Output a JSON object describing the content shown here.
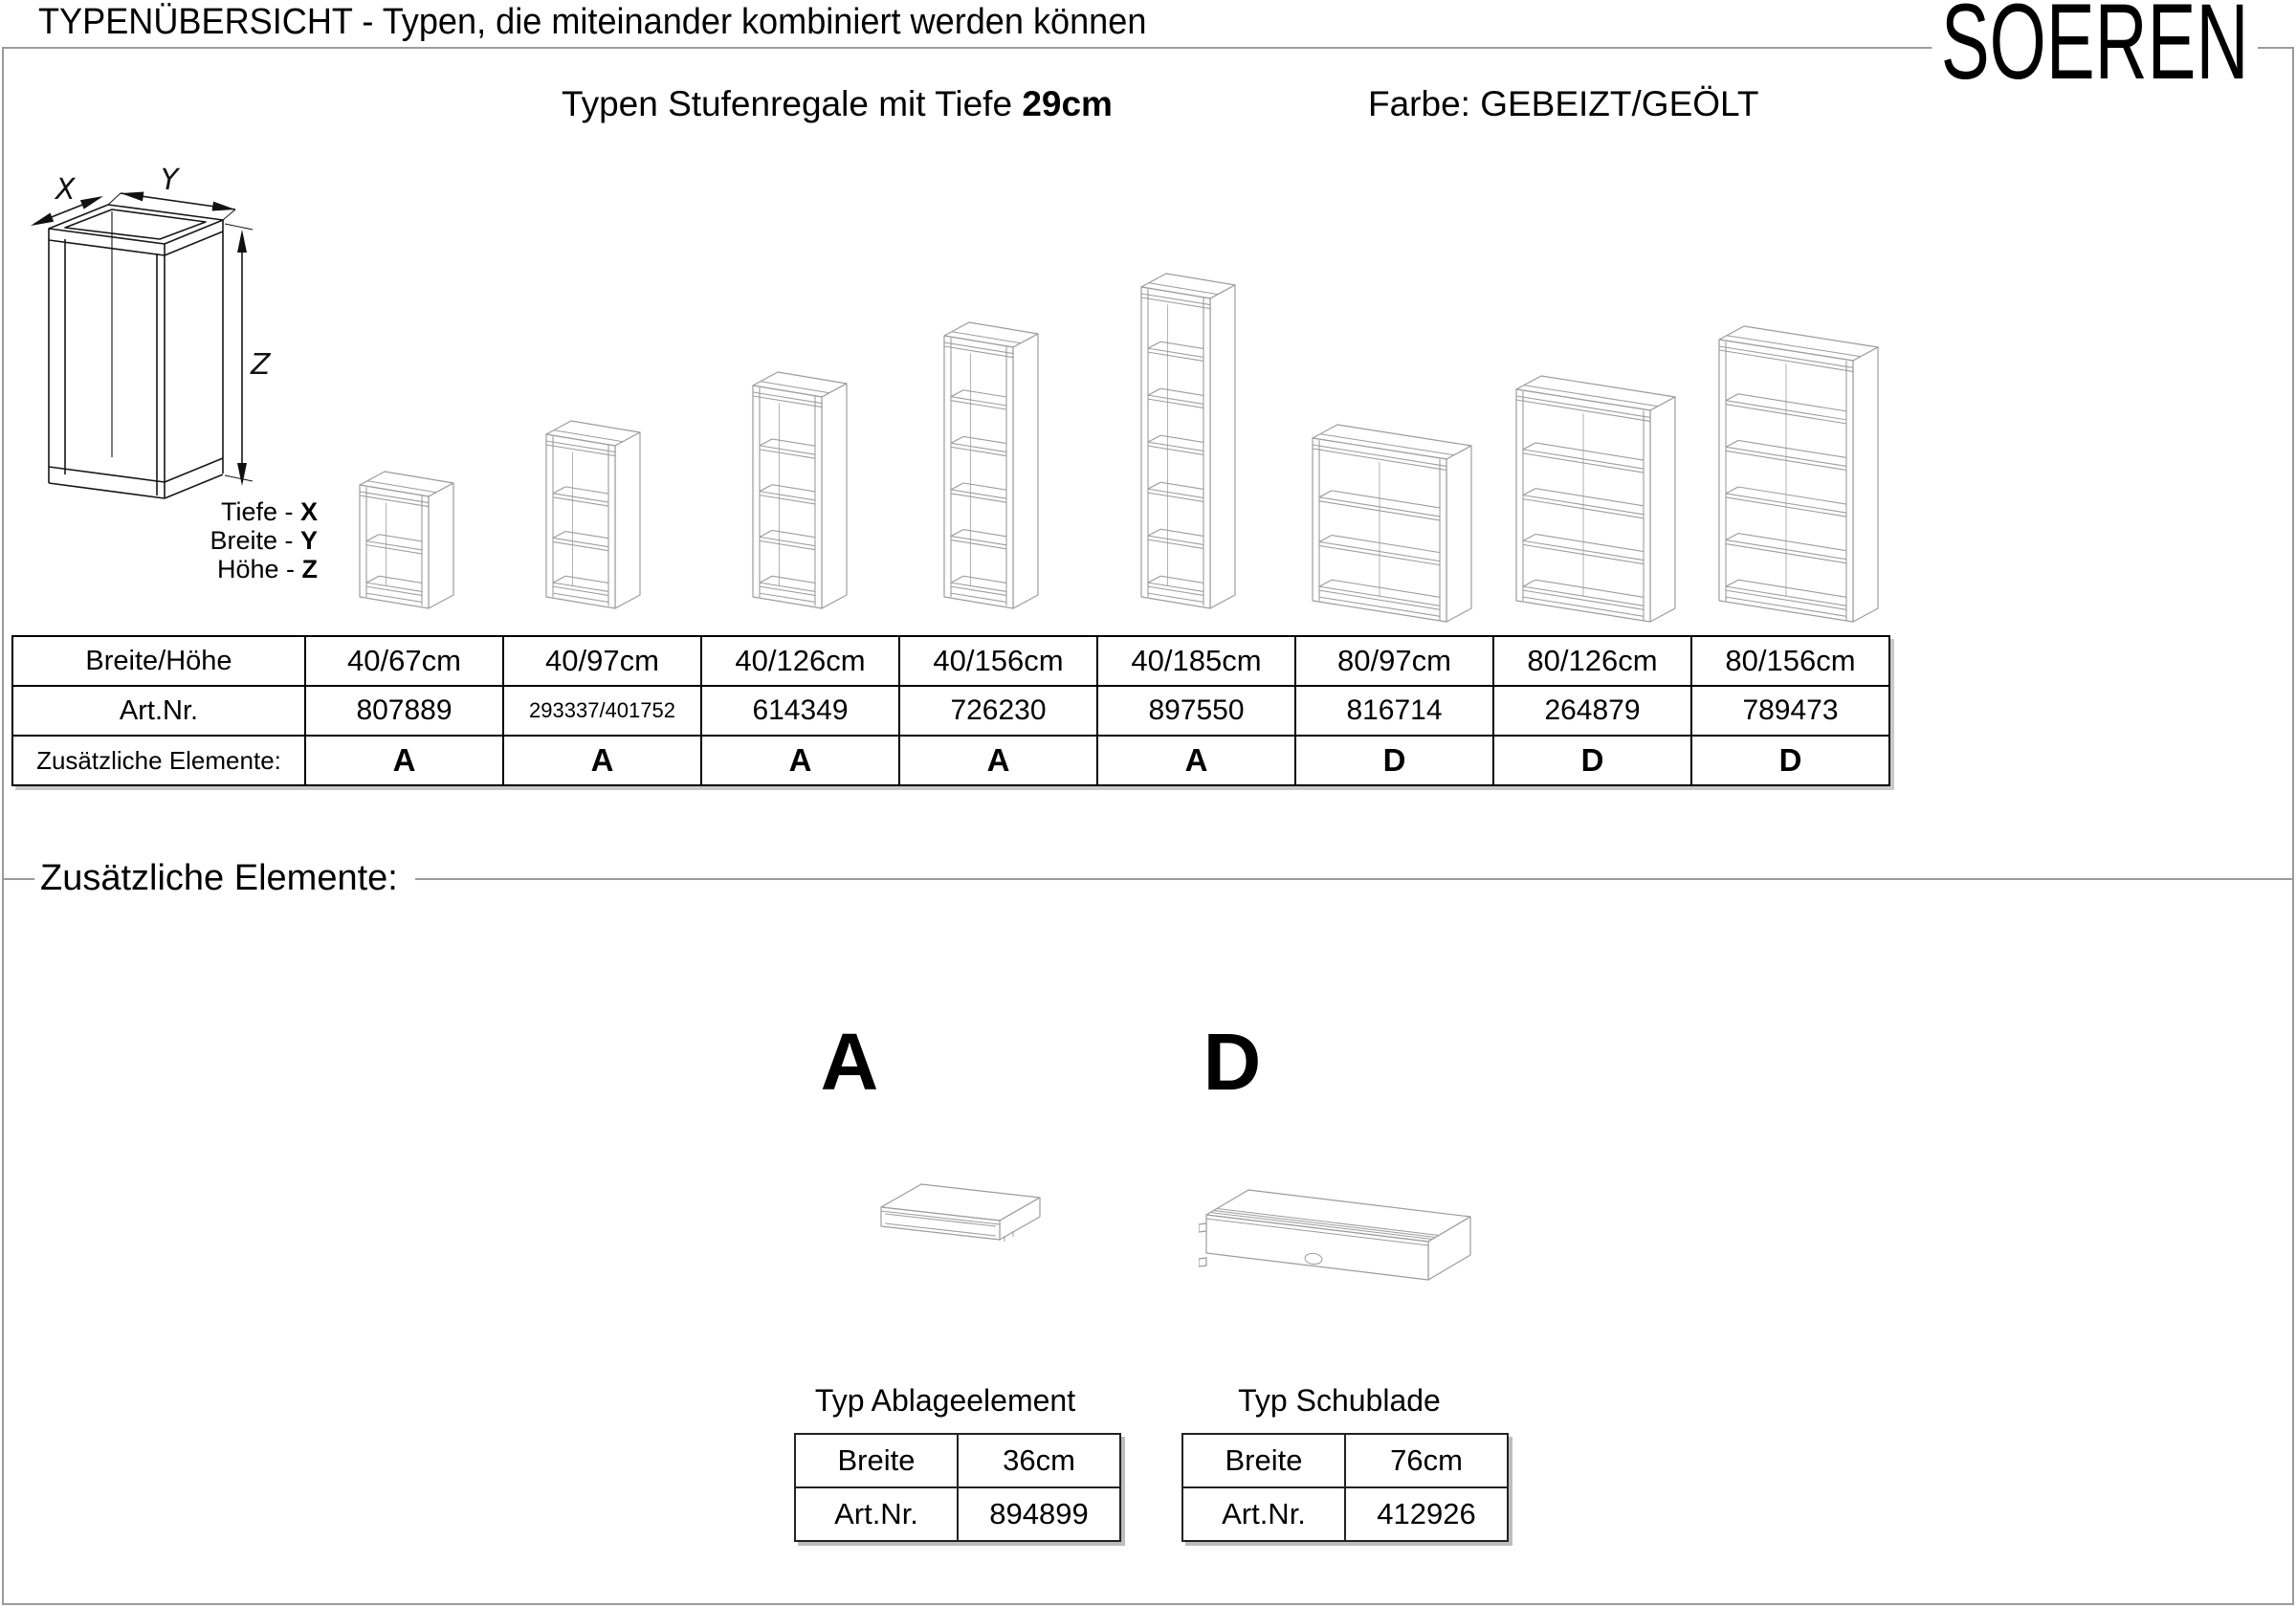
{
  "page": {
    "title": "TYPENÜBERSICHT - Typen, die miteinander kombiniert werden können",
    "brand": "SOEREN",
    "subtitle_prefix": "Typen Stufenregale mit Tiefe ",
    "subtitle_bold": "29cm",
    "color_label": "Farbe: GEBEIZT/GEÖLT"
  },
  "colors": {
    "drawing_line_gray": "#9c9c9c",
    "border_gray": "#9b9b9b",
    "text": "#000000"
  },
  "dimension_legend": {
    "x_label": "X",
    "y_label": "Y",
    "z_label": "Z",
    "lines": [
      {
        "prefix": "Tiefe - ",
        "axis": "X"
      },
      {
        "prefix": "Breite - ",
        "axis": "Y"
      },
      {
        "prefix": "Höhe - ",
        "axis": "Z"
      }
    ]
  },
  "shelves": [
    {
      "width_cm": 40,
      "height_cm": 67,
      "compartments": 2
    },
    {
      "width_cm": 40,
      "height_cm": 97,
      "compartments": 3
    },
    {
      "width_cm": 40,
      "height_cm": 126,
      "compartments": 4
    },
    {
      "width_cm": 40,
      "height_cm": 156,
      "compartments": 5
    },
    {
      "width_cm": 40,
      "height_cm": 185,
      "compartments": 6
    },
    {
      "width_cm": 80,
      "height_cm": 97,
      "compartments": 3
    },
    {
      "width_cm": 80,
      "height_cm": 126,
      "compartments": 4
    },
    {
      "width_cm": 80,
      "height_cm": 156,
      "compartments": 5
    }
  ],
  "types_table": {
    "row_headers": [
      "Breite/Höhe",
      "Art.Nr.",
      "Zusätzliche Elemente:"
    ],
    "columns": [
      {
        "size": "40/67cm",
        "art_nr": "807889",
        "element": "A"
      },
      {
        "size": "40/97cm",
        "art_nr": "293337/401752",
        "element": "A"
      },
      {
        "size": "40/126cm",
        "art_nr": "614349",
        "element": "A"
      },
      {
        "size": "40/156cm",
        "art_nr": "726230",
        "element": "A"
      },
      {
        "size": "40/185cm",
        "art_nr": "897550",
        "element": "A"
      },
      {
        "size": "80/97cm",
        "art_nr": "816714",
        "element": "D"
      },
      {
        "size": "80/126cm",
        "art_nr": "264879",
        "element": "D"
      },
      {
        "size": "80/156cm",
        "art_nr": "789473",
        "element": "D"
      }
    ]
  },
  "extras": {
    "heading": "Zusätzliche Elemente:",
    "items": [
      {
        "letter": "A",
        "type_label": "Typ Ablageelement",
        "table": {
          "rows": [
            [
              "Breite",
              "36cm"
            ],
            [
              "Art.Nr.",
              "894899"
            ]
          ]
        }
      },
      {
        "letter": "D",
        "type_label": "Typ Schublade",
        "table": {
          "rows": [
            [
              "Breite",
              "76cm"
            ],
            [
              "Art.Nr.",
              "412926"
            ]
          ]
        }
      }
    ]
  }
}
